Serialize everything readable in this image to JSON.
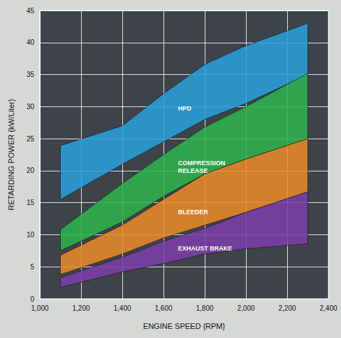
{
  "chart_data": {
    "type": "area",
    "x_label": "ENGINE SPEED {RPM}",
    "y_label": "RETARDING POWER {kW/Liter}",
    "x": [
      1100,
      1400,
      1600,
      1800,
      2000,
      2300
    ],
    "series": [
      {
        "name": "HPD",
        "color": "#2a9ed8",
        "lower": [
          15.5,
          21,
          24.5,
          28,
          30.5,
          35
        ],
        "upper": [
          23.9,
          27,
          32,
          36.6,
          39.5,
          43
        ]
      },
      {
        "name": "COMPRESSION RELEASE",
        "color": "#2eb24c",
        "lower": [
          7.5,
          12,
          16,
          19.5,
          21.8,
          25
        ],
        "upper": [
          10.8,
          18,
          22.5,
          26.8,
          30,
          35.2
        ]
      },
      {
        "name": "BLEEDER",
        "color": "#e8892a",
        "lower": [
          3.8,
          7,
          9.5,
          11.5,
          13.5,
          16.7
        ],
        "upper": [
          6.8,
          11.5,
          15.5,
          19.5,
          21.8,
          25
        ]
      },
      {
        "name": "EXHAUST BRAKE",
        "color": "#7b3fa6",
        "lower": [
          1.8,
          4.2,
          5.5,
          7,
          7.8,
          8.6
        ],
        "upper": [
          3.3,
          6.5,
          9,
          11,
          13.5,
          16.7
        ]
      }
    ],
    "xlim": [
      1000,
      2400
    ],
    "xticks": [
      1000,
      1200,
      1400,
      1600,
      1800,
      2000,
      2200,
      2400
    ],
    "ylim": [
      0,
      45
    ],
    "yticks": [
      0,
      5,
      10,
      15,
      20,
      25,
      30,
      35,
      40,
      45
    ],
    "grid": true
  }
}
